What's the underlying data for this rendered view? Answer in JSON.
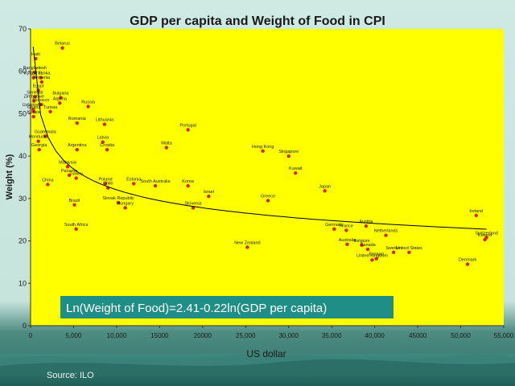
{
  "source_text": "Source: ILO",
  "chart_data": {
    "type": "scatter",
    "title": "GDP per capita and Weight of Food in CPI",
    "xlabel": "US dollar",
    "ylabel": "Weight (%)",
    "xlim": [
      0,
      55000
    ],
    "ylim": [
      0,
      70
    ],
    "xticks": [
      "0",
      "5,000",
      "10,000",
      "15000",
      "20000",
      "25,000",
      "30,000",
      "35,000",
      "40,000",
      "45000",
      "50,000",
      "55,000"
    ],
    "yticks": [
      "0",
      "10",
      "20",
      "30",
      "40",
      "50",
      "60",
      "70"
    ],
    "grid": false,
    "plot_background": "#ffff00",
    "point_color": "#d7261e",
    "trendline": "log",
    "equation": "Ln(Weight of Food)=2.41-0.22ln(GDP per capita)",
    "equation_bg": "#1f8e86",
    "points": [
      {
        "label": "Belarus",
        "x": 3700,
        "y": 65.5
      },
      {
        "label": "Haiti",
        "x": 600,
        "y": 63
      },
      {
        "label": "Bangladesh",
        "x": 500,
        "y": 59.8
      },
      {
        "label": "Kyrgyz R.",
        "x": 350,
        "y": 58.5
      },
      {
        "label": "Sri Lanka",
        "x": 1200,
        "y": 58.5
      },
      {
        "label": "Armenia",
        "x": 1300,
        "y": 57.5
      },
      {
        "label": "Egypt",
        "x": 900,
        "y": 55.5
      },
      {
        "label": "Senegal",
        "x": 500,
        "y": 54
      },
      {
        "label": "Zimbabwe",
        "x": 400,
        "y": 53
      },
      {
        "label": "Bulgaria",
        "x": 3500,
        "y": 53.8
      },
      {
        "label": "Morocco",
        "x": 1200,
        "y": 52.2
      },
      {
        "label": "Algeria",
        "x": 3400,
        "y": 52.5
      },
      {
        "label": "Russia",
        "x": 6700,
        "y": 51.7
      },
      {
        "label": "Uzbekistan",
        "x": 300,
        "y": 51
      },
      {
        "label": "Ghana",
        "x": 400,
        "y": 50.5
      },
      {
        "label": "Tunisia",
        "x": 2300,
        "y": 50.5
      },
      {
        "label": "Romania",
        "x": 5400,
        "y": 47.8
      },
      {
        "label": "Lithuania",
        "x": 8600,
        "y": 47.5
      },
      {
        "label": "Portugal",
        "x": 18300,
        "y": 46.2
      },
      {
        "label": "Kenya",
        "x": 350,
        "y": 49.3
      },
      {
        "label": "Guatemala",
        "x": 1700,
        "y": 44.7
      },
      {
        "label": "Honduras",
        "x": 900,
        "y": 43.5
      },
      {
        "label": "Latvia",
        "x": 8400,
        "y": 43.3
      },
      {
        "label": "Malta",
        "x": 15800,
        "y": 42
      },
      {
        "label": "Argentina",
        "x": 5400,
        "y": 41.5
      },
      {
        "label": "Croatia",
        "x": 8900,
        "y": 41.5
      },
      {
        "label": "Hong Kong",
        "x": 27000,
        "y": 41.2
      },
      {
        "label": "Singapore",
        "x": 30000,
        "y": 40
      },
      {
        "label": "Georgia",
        "x": 1000,
        "y": 41.5
      },
      {
        "label": "Kuwait",
        "x": 30800,
        "y": 36
      },
      {
        "label": "Malaysia",
        "x": 4300,
        "y": 37.5
      },
      {
        "label": "China",
        "x": 2000,
        "y": 33.3
      },
      {
        "label": "Panama",
        "x": 4500,
        "y": 35.5
      },
      {
        "label": "Turkey",
        "x": 5300,
        "y": 34.8
      },
      {
        "label": "Poland",
        "x": 8700,
        "y": 33.5
      },
      {
        "label": "Chile",
        "x": 9000,
        "y": 32.5
      },
      {
        "label": "Estonia",
        "x": 12000,
        "y": 33.5
      },
      {
        "label": "South Australia",
        "x": 14500,
        "y": 33
      },
      {
        "label": "Korea",
        "x": 18300,
        "y": 33
      },
      {
        "label": "Japan",
        "x": 34200,
        "y": 31.8
      },
      {
        "label": "Slovak Republic",
        "x": 10200,
        "y": 29
      },
      {
        "label": "Israel",
        "x": 20700,
        "y": 30.5
      },
      {
        "label": "Greece",
        "x": 27600,
        "y": 29.5
      },
      {
        "label": "Hungary",
        "x": 11000,
        "y": 27.8
      },
      {
        "label": "Slovenia",
        "x": 18900,
        "y": 27.8
      },
      {
        "label": "Brazil",
        "x": 5100,
        "y": 28.5
      },
      {
        "label": "Ireland",
        "x": 51800,
        "y": 26
      },
      {
        "label": "Austria",
        "x": 39000,
        "y": 23.5
      },
      {
        "label": "South Africa",
        "x": 5300,
        "y": 22.8
      },
      {
        "label": "Germany",
        "x": 35300,
        "y": 22.8
      },
      {
        "label": "France",
        "x": 36700,
        "y": 22.5
      },
      {
        "label": "Netherlands",
        "x": 41300,
        "y": 21.3
      },
      {
        "label": "Switzerland",
        "x": 53000,
        "y": 20.8
      },
      {
        "label": "Iceland",
        "x": 52800,
        "y": 20.3
      },
      {
        "label": "New Zealand",
        "x": 25200,
        "y": 18.5
      },
      {
        "label": "Australia",
        "x": 36800,
        "y": 19.2
      },
      {
        "label": "Belgium",
        "x": 38500,
        "y": 19
      },
      {
        "label": "Canada",
        "x": 39200,
        "y": 18
      },
      {
        "label": "Sweden",
        "x": 42200,
        "y": 17.3
      },
      {
        "label": "United States",
        "x": 44000,
        "y": 17.3
      },
      {
        "label": "Finland",
        "x": 40200,
        "y": 15.8
      },
      {
        "label": "United Kingdom",
        "x": 39700,
        "y": 15.5
      },
      {
        "label": "Denmark",
        "x": 50800,
        "y": 14.5
      }
    ]
  }
}
